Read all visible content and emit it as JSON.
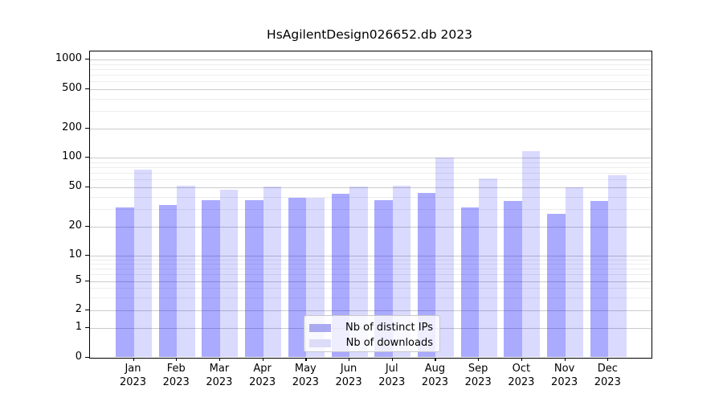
{
  "title": "HsAgilentDesign026652.db 2023",
  "chart_data": {
    "type": "bar",
    "title": "HsAgilentDesign026652.db 2023",
    "xlabel": "",
    "ylabel": "",
    "categories": [
      "Jan",
      "Feb",
      "Mar",
      "Apr",
      "May",
      "Jun",
      "Jul",
      "Aug",
      "Sep",
      "Oct",
      "Nov",
      "Dec"
    ],
    "x_sub_label": "2023",
    "series": [
      {
        "name": "Nb of distinct IPs",
        "color": "rgba(0,0,255,0.335)",
        "legend_color": "#aaaaf0",
        "values": [
          31,
          33,
          37,
          37,
          39,
          43,
          37,
          44,
          31,
          36,
          27,
          36
        ]
      },
      {
        "name": "Nb of downloads",
        "color": "rgba(0,0,255,0.145)",
        "legend_color": "#dcdcf8",
        "values": [
          76,
          52,
          47,
          51,
          39,
          51,
          52,
          101,
          61,
          118,
          50,
          67
        ]
      }
    ],
    "y_scale": "symlog",
    "y_ticks": [
      0,
      1,
      2,
      5,
      10,
      20,
      50,
      100,
      200,
      500,
      1000
    ],
    "y_minor_ticks": [
      3,
      4,
      6,
      7,
      8,
      9,
      30,
      40,
      60,
      70,
      80,
      90,
      300,
      400,
      600,
      700,
      800,
      900
    ],
    "ylim": [
      0,
      1400
    ],
    "grid": true,
    "legend_position": "lower center",
    "colors": {
      "bar_dark": "#aaaaf0",
      "bar_light": "#dcdcf8",
      "grid_major": "#cbcbcb",
      "grid_minor": "#ededed",
      "axis": "#000000"
    }
  },
  "legend": {
    "entries": [
      {
        "label": "Nb of distinct IPs"
      },
      {
        "label": "Nb of downloads"
      }
    ]
  }
}
